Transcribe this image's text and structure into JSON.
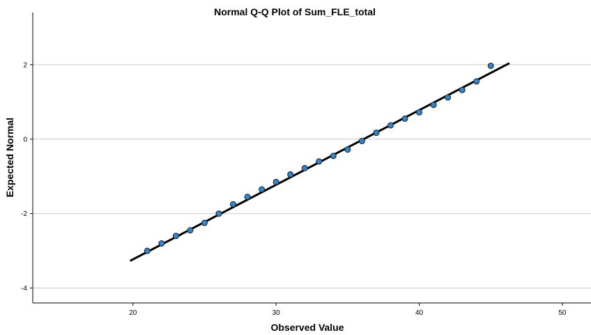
{
  "chart_data": {
    "type": "scatter",
    "title": "Normal Q-Q Plot of Sum_FLE_total",
    "xlabel": "Observed Value",
    "ylabel": "Expected Normal",
    "xlim": [
      13,
      52
    ],
    "ylim": [
      -4.4,
      3.4
    ],
    "x_ticks": [
      20,
      30,
      40,
      50
    ],
    "y_ticks": [
      2,
      0,
      -2,
      -4
    ],
    "grid": {
      "horizontal": true,
      "vertical": false
    },
    "colors": {
      "point_fill": "#2e86d1",
      "point_stroke": "#1a1a1a",
      "line": "#000000",
      "grid": "#c8c8c8",
      "axis": "#000000"
    },
    "points": [
      {
        "x": 21,
        "y": -3.0
      },
      {
        "x": 22,
        "y": -2.8
      },
      {
        "x": 23,
        "y": -2.6
      },
      {
        "x": 24,
        "y": -2.45
      },
      {
        "x": 25,
        "y": -2.25
      },
      {
        "x": 26,
        "y": -2.0
      },
      {
        "x": 27,
        "y": -1.75
      },
      {
        "x": 28,
        "y": -1.55
      },
      {
        "x": 29,
        "y": -1.35
      },
      {
        "x": 30,
        "y": -1.15
      },
      {
        "x": 31,
        "y": -0.95
      },
      {
        "x": 32,
        "y": -0.78
      },
      {
        "x": 33,
        "y": -0.6
      },
      {
        "x": 34,
        "y": -0.45
      },
      {
        "x": 35,
        "y": -0.28
      },
      {
        "x": 36,
        "y": -0.05
      },
      {
        "x": 37,
        "y": 0.17
      },
      {
        "x": 38,
        "y": 0.37
      },
      {
        "x": 39,
        "y": 0.55
      },
      {
        "x": 40,
        "y": 0.72
      },
      {
        "x": 41,
        "y": 0.92
      },
      {
        "x": 42,
        "y": 1.12
      },
      {
        "x": 43,
        "y": 1.32
      },
      {
        "x": 44,
        "y": 1.55
      },
      {
        "x": 45,
        "y": 1.97
      }
    ],
    "reference_line": {
      "x": [
        19.8,
        46.3
      ],
      "y": [
        -3.27,
        2.04
      ]
    }
  }
}
